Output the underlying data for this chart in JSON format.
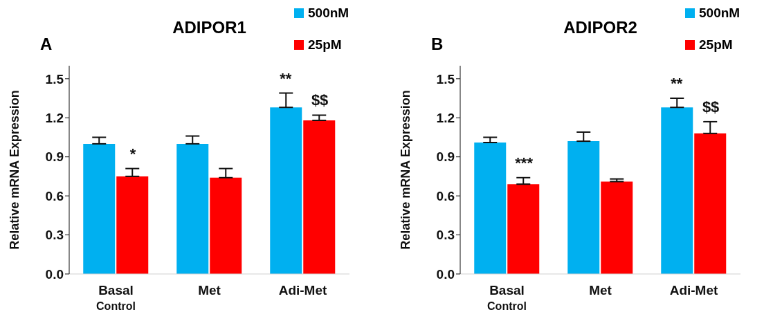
{
  "chart_data": [
    {
      "type": "bar",
      "title": "ADIPOR1",
      "ylabel": "Relative mRNA Expression",
      "categories": [
        "Basal Control",
        "Met",
        "Adi-Met"
      ],
      "series": [
        {
          "name": "500nM",
          "color": "#00b0f0",
          "values": [
            1.0,
            1.0,
            1.28
          ],
          "errors": [
            [
              1.0,
              1.05
            ],
            [
              1.0,
              1.06
            ],
            [
              1.28,
              1.39
            ]
          ]
        },
        {
          "name": "25pM",
          "color": "#ff0000",
          "values": [
            0.75,
            0.74,
            1.18
          ],
          "errors": [
            [
              0.75,
              0.81
            ],
            [
              0.74,
              0.81
            ],
            [
              1.18,
              1.22
            ]
          ]
        }
      ],
      "ylim": [
        0,
        1.6
      ],
      "yticks": [
        {
          "value": 0,
          "label": "0.0"
        },
        0.3,
        0.6,
        0.9,
        1.2,
        1.5
      ],
      "grid": false,
      "legend": "top right",
      "annotations": [
        "A",
        {
          "text": "*",
          "x": "Basal Control",
          "y": 0.75
        },
        {
          "text": "**",
          "x": "Adi-Met",
          "y": 1.28
        },
        {
          "text": "$$",
          "x": "Adi-Met",
          "y": 1.18
        }
      ]
    },
    {
      "type": "bar",
      "title": "ADIPOR2",
      "ylabel": "Relative mRNA Expression",
      "categories": [
        "Basal Control",
        "Met",
        "Adi-Met"
      ],
      "series": [
        {
          "name": "500nM",
          "color": "#00b0f0",
          "values": [
            1.01,
            1.02,
            1.28
          ],
          "errors": [
            [
              1.01,
              1.05
            ],
            [
              1.02,
              1.09
            ],
            [
              1.28,
              1.35
            ]
          ]
        },
        {
          "name": "25pM",
          "color": "#ff0000",
          "values": [
            0.69,
            0.71,
            1.08
          ],
          "errors": [
            [
              0.69,
              0.74
            ],
            [
              0.71,
              0.73
            ],
            [
              1.08,
              1.17
            ]
          ]
        }
      ],
      "ylim": [
        0,
        1.6
      ],
      "yticks": [
        {
          "value": 0,
          "label": "0.0"
        },
        0.3,
        0.6,
        0.9,
        1.2,
        1.5
      ],
      "grid": false,
      "legend": "top right",
      "annotations": [
        "B",
        {
          "text": "***",
          "x": "Basal Control",
          "y": 0.69
        },
        {
          "text": "**",
          "x": "Adi-Met",
          "y": 1.28
        },
        {
          "text": "$$",
          "x": "Adi-Met",
          "y": 1.08
        }
      ]
    }
  ]
}
